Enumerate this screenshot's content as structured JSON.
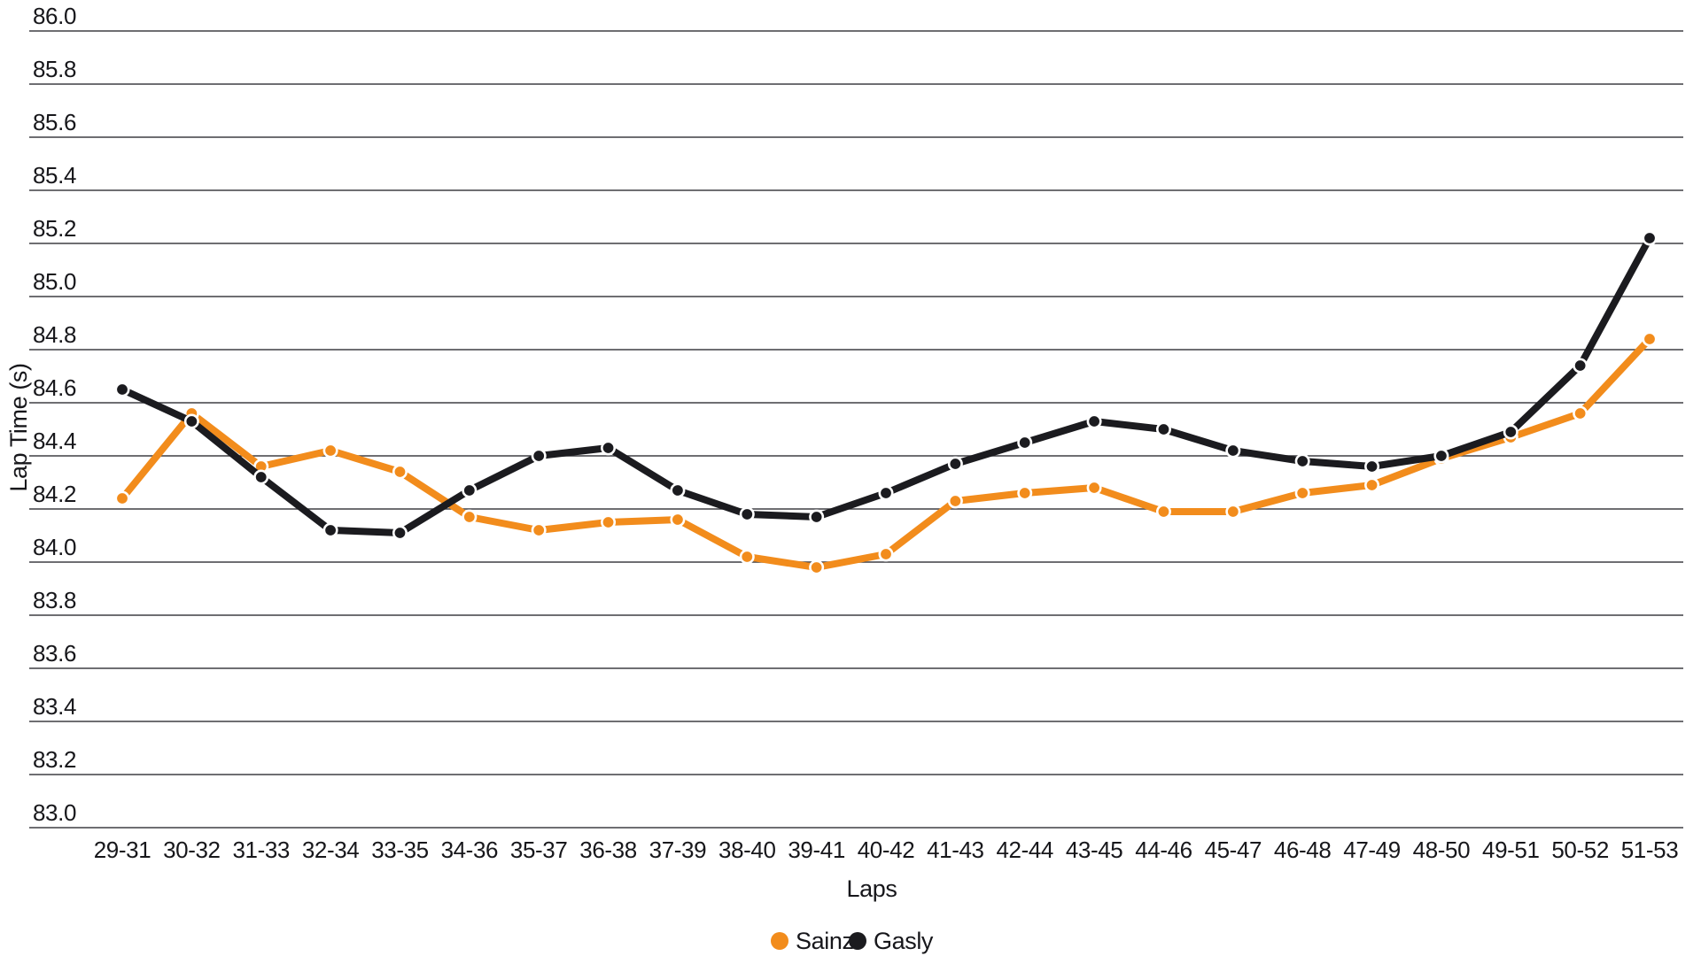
{
  "chart_data": {
    "type": "line",
    "title": "",
    "xlabel": "Laps",
    "ylabel": "Lap Time (s)",
    "ylim": [
      83.0,
      86.0
    ],
    "ytick_step": 0.2,
    "y_ticks": [
      "86.0",
      "85.8",
      "85.6",
      "85.4",
      "85.2",
      "85.0",
      "84.8",
      "84.6",
      "84.4",
      "84.2",
      "84.0",
      "83.8",
      "83.6",
      "83.4",
      "83.2",
      "83.0"
    ],
    "grid": "horizontal",
    "legend_position": "bottom-center",
    "categories": [
      "29-31",
      "30-32",
      "31-33",
      "32-34",
      "33-35",
      "34-36",
      "35-37",
      "36-38",
      "37-39",
      "38-40",
      "39-41",
      "40-42",
      "41-43",
      "42-44",
      "43-45",
      "44-46",
      "45-47",
      "46-48",
      "47-49",
      "48-50",
      "49-51",
      "50-52",
      "51-53"
    ],
    "series": [
      {
        "name": "Sainz",
        "color": "#F28C1C",
        "values": [
          84.24,
          84.56,
          84.36,
          84.42,
          84.34,
          84.17,
          84.12,
          84.15,
          84.16,
          84.02,
          83.98,
          84.03,
          84.23,
          84.26,
          84.28,
          84.19,
          84.19,
          84.26,
          84.29,
          84.39,
          84.47,
          84.56,
          84.84
        ]
      },
      {
        "name": "Gasly",
        "color": "#1B1B1F",
        "values": [
          84.65,
          84.53,
          84.32,
          84.12,
          84.11,
          84.27,
          84.4,
          84.43,
          84.27,
          84.18,
          84.17,
          84.26,
          84.37,
          84.45,
          84.53,
          84.5,
          84.42,
          84.38,
          84.36,
          84.4,
          84.49,
          84.74,
          85.22
        ]
      }
    ]
  },
  "colors": {
    "background": "#ffffff",
    "gridline": "#3f3f44",
    "text": "#17171b",
    "marker_edge": "#ffffff"
  }
}
